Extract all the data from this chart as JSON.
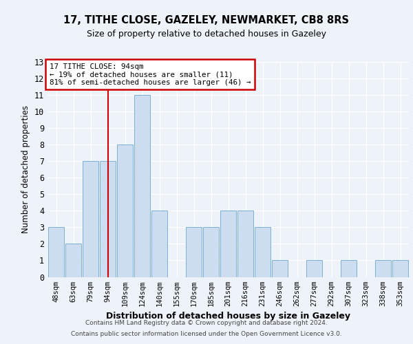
{
  "title1": "17, TITHE CLOSE, GAZELEY, NEWMARKET, CB8 8RS",
  "title2": "Size of property relative to detached houses in Gazeley",
  "xlabel": "Distribution of detached houses by size in Gazeley",
  "ylabel": "Number of detached properties",
  "categories": [
    "48sqm",
    "63sqm",
    "79sqm",
    "94sqm",
    "109sqm",
    "124sqm",
    "140sqm",
    "155sqm",
    "170sqm",
    "185sqm",
    "201sqm",
    "216sqm",
    "231sqm",
    "246sqm",
    "262sqm",
    "277sqm",
    "292sqm",
    "307sqm",
    "323sqm",
    "338sqm",
    "353sqm"
  ],
  "values": [
    3,
    2,
    7,
    7,
    8,
    11,
    4,
    0,
    3,
    3,
    4,
    4,
    3,
    1,
    0,
    1,
    0,
    1,
    0,
    1,
    1
  ],
  "bar_color": "#ccddf0",
  "bar_edge_color": "#7bafd4",
  "red_line_index": 3,
  "annotation_line1": "17 TITHE CLOSE: 94sqm",
  "annotation_line2": "← 19% of detached houses are smaller (11)",
  "annotation_line3": "81% of semi-detached houses are larger (46) →",
  "annotation_box_color": "white",
  "annotation_box_edge": "#cc0000",
  "red_line_color": "#cc0000",
  "ylim": [
    0,
    13
  ],
  "yticks": [
    0,
    1,
    2,
    3,
    4,
    5,
    6,
    7,
    8,
    9,
    10,
    11,
    12,
    13
  ],
  "footer1": "Contains HM Land Registry data © Crown copyright and database right 2024.",
  "footer2": "Contains public sector information licensed under the Open Government Licence v3.0.",
  "bg_color": "#eef3fa",
  "plot_bg_color": "#eef3fa"
}
